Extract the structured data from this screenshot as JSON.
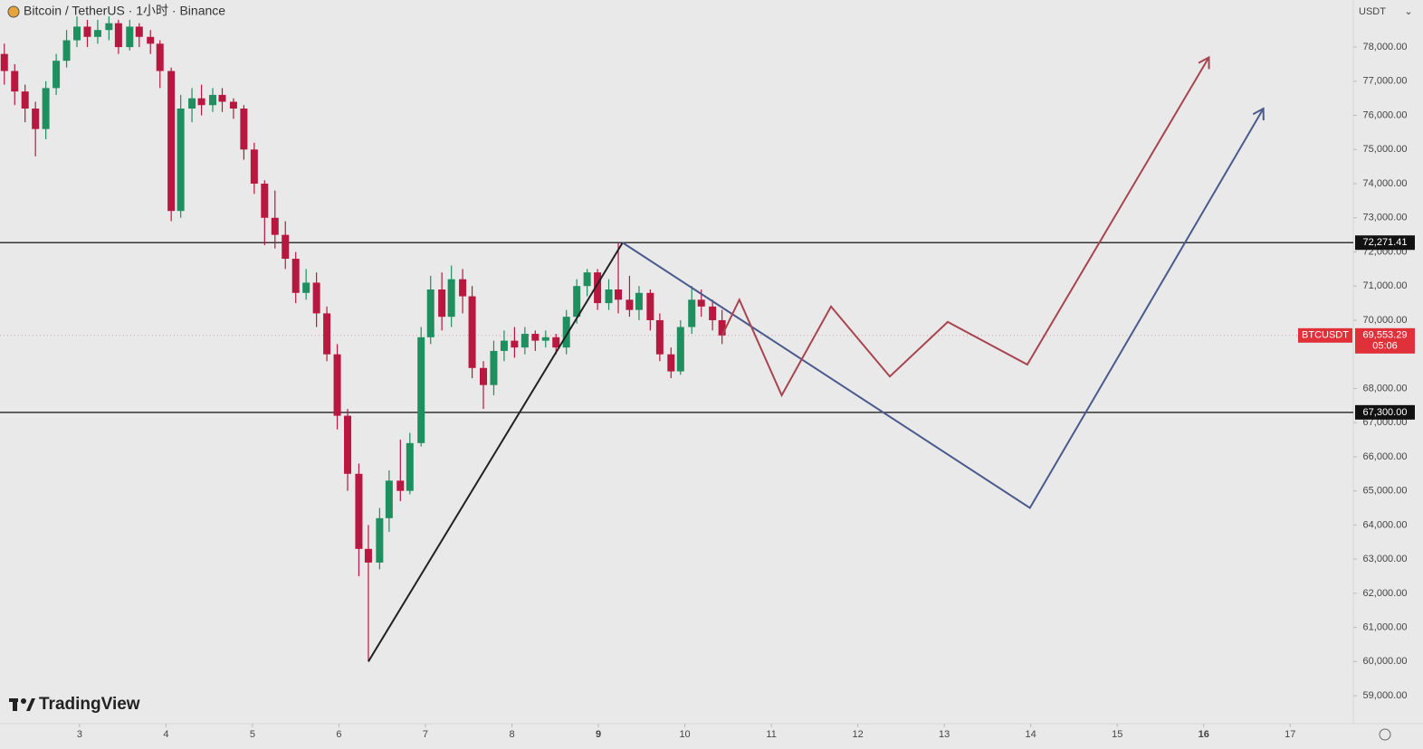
{
  "chart_data": {
    "type": "candlestick",
    "title": "Bitcoin / TetherUS · 1小时 · Binance",
    "currency": "USDT",
    "brand": "TradingView",
    "up_color": "#1f8f5f",
    "down_color": "#b8173f",
    "xlim": [
      2.08,
      17.73
    ],
    "ylim": [
      58180,
      79380
    ],
    "xticks": [
      3,
      4,
      5,
      6,
      7,
      8,
      9,
      10,
      11,
      12,
      13,
      14,
      15,
      16,
      17
    ],
    "yticks": [
      {
        "value": 59000,
        "label": "59,000.00"
      },
      {
        "value": 60000,
        "label": "60,000.00"
      },
      {
        "value": 61000,
        "label": "61,000.00"
      },
      {
        "value": 62000,
        "label": "62,000.00"
      },
      {
        "value": 63000,
        "label": "63,000.00"
      },
      {
        "value": 64000,
        "label": "64,000.00"
      },
      {
        "value": 65000,
        "label": "65,000.00"
      },
      {
        "value": 66000,
        "label": "66,000.00"
      },
      {
        "value": 67000,
        "label": "67,000.00"
      },
      {
        "value": 68000,
        "label": "68,000.00"
      },
      {
        "value": 70000,
        "label": "70,000.00"
      },
      {
        "value": 71000,
        "label": "71,000.00"
      },
      {
        "value": 72000,
        "label": "72,000.00"
      },
      {
        "value": 73000,
        "label": "73,000.00"
      },
      {
        "value": 74000,
        "label": "74,000.00"
      },
      {
        "value": 75000,
        "label": "75,000.00"
      },
      {
        "value": 76000,
        "label": "76,000.00"
      },
      {
        "value": 77000,
        "label": "77,000.00"
      },
      {
        "value": 78000,
        "label": "78,000.00"
      }
    ],
    "x": [
      2.13,
      2.25,
      2.37,
      2.49,
      2.61,
      2.73,
      2.85,
      2.97,
      3.09,
      3.21,
      3.34,
      3.45,
      3.58,
      3.69,
      3.82,
      3.93,
      4.06,
      4.17,
      4.3,
      4.41,
      4.54,
      4.65,
      4.78,
      4.9,
      5.02,
      5.14,
      5.26,
      5.38,
      5.5,
      5.62,
      5.74,
      5.86,
      5.98,
      6.1,
      6.23,
      6.34,
      6.47,
      6.58,
      6.71,
      6.82,
      6.95,
      7.06,
      7.19,
      7.3,
      7.43,
      7.54,
      7.67,
      7.79,
      7.91,
      8.03,
      8.15,
      8.27,
      8.39,
      8.51,
      8.63,
      8.75,
      8.87,
      8.99,
      9.12,
      9.23,
      9.36,
      9.47,
      9.6,
      9.71,
      9.84,
      9.95,
      10.08,
      10.19,
      10.32,
      10.43
    ],
    "open": [
      77800,
      77300,
      76700,
      76200,
      75600,
      76800,
      77600,
      78200,
      78600,
      78300,
      78500,
      78700,
      78000,
      78600,
      78300,
      78100,
      77300,
      73200,
      76200,
      76500,
      76300,
      76600,
      76400,
      76200,
      75000,
      74000,
      73000,
      72500,
      71800,
      70800,
      71100,
      70200,
      69000,
      67200,
      65500,
      63300,
      62900,
      64200,
      65300,
      65000,
      66400,
      69500,
      70900,
      70100,
      71200,
      70700,
      68600,
      68100,
      69100,
      69400,
      69200,
      69600,
      69400,
      69500,
      69200,
      70100,
      71000,
      71400,
      70500,
      70900,
      70600,
      70300,
      70800,
      70000,
      69000,
      68500,
      69800,
      70600,
      70400,
      70000
    ],
    "high": [
      78100,
      77500,
      76900,
      76400,
      77000,
      77800,
      78500,
      78900,
      78800,
      78800,
      78900,
      78800,
      78800,
      78700,
      78500,
      78200,
      77400,
      76600,
      76800,
      76900,
      76800,
      76800,
      76500,
      76300,
      75200,
      74100,
      73800,
      72900,
      72000,
      71500,
      71400,
      70400,
      69300,
      67400,
      65800,
      64000,
      64500,
      65600,
      66500,
      66700,
      69800,
      71300,
      71400,
      71600,
      71500,
      71000,
      68800,
      69400,
      69700,
      69800,
      69800,
      69700,
      69700,
      69600,
      70300,
      71200,
      71500,
      71500,
      71200,
      72271,
      71300,
      71000,
      70900,
      70200,
      69200,
      70000,
      71000,
      70900,
      70600,
      70300
    ],
    "low": [
      76900,
      76300,
      75800,
      74800,
      75300,
      76600,
      77400,
      78000,
      78000,
      78100,
      78200,
      77800,
      77900,
      78000,
      77800,
      76800,
      72900,
      73000,
      75800,
      76000,
      76100,
      76100,
      75900,
      74700,
      73700,
      72200,
      72100,
      71500,
      70500,
      70600,
      69800,
      68800,
      66800,
      65000,
      62500,
      60000,
      62700,
      63800,
      64700,
      64900,
      66300,
      69300,
      69700,
      69800,
      70200,
      68300,
      67400,
      67800,
      68800,
      68900,
      69000,
      69100,
      69200,
      69000,
      69000,
      69900,
      70700,
      70300,
      70300,
      70200,
      70100,
      70000,
      69700,
      68800,
      68300,
      68400,
      69600,
      70100,
      69700,
      69300
    ],
    "close": [
      77300,
      76700,
      76200,
      75600,
      76800,
      77600,
      78200,
      78600,
      78300,
      78500,
      78700,
      78000,
      78600,
      78300,
      78100,
      77300,
      73200,
      76200,
      76500,
      76300,
      76600,
      76400,
      76200,
      75000,
      74000,
      73000,
      72500,
      71800,
      70800,
      71100,
      70200,
      69000,
      67200,
      65500,
      63300,
      62900,
      64200,
      65300,
      65000,
      66400,
      69500,
      70900,
      70100,
      71200,
      70700,
      68600,
      68100,
      69100,
      69400,
      69200,
      69600,
      69400,
      69500,
      69200,
      70100,
      71000,
      71400,
      70500,
      70900,
      70600,
      70300,
      70800,
      70000,
      69000,
      68500,
      69800,
      70600,
      70400,
      70000,
      69553
    ],
    "levels": [
      {
        "value": 72271.41,
        "label": "72,271.41"
      },
      {
        "value": 67300,
        "label": "67,300.00"
      }
    ],
    "last_price": {
      "symbol": "BTCUSDT",
      "value": 69553.29,
      "label": "69,553.29",
      "countdown": "05:06",
      "color": "#e0303a"
    },
    "drawings": [
      {
        "color": "#222222",
        "x": [
          6.34,
          9.28
        ],
        "y": [
          60000,
          72271
        ]
      },
      {
        "color": "#4a5a8c",
        "x": [
          9.28,
          13.99,
          16.69
        ],
        "y": [
          72271,
          64500,
          76200
        ]
      },
      {
        "color": "#a8444f",
        "x": [
          10.43,
          10.63,
          11.12,
          11.69,
          12.37,
          13.04,
          13.96,
          16.06
        ],
        "y": [
          69553,
          70600,
          67800,
          70400,
          68350,
          69950,
          68700,
          77700
        ]
      }
    ]
  }
}
